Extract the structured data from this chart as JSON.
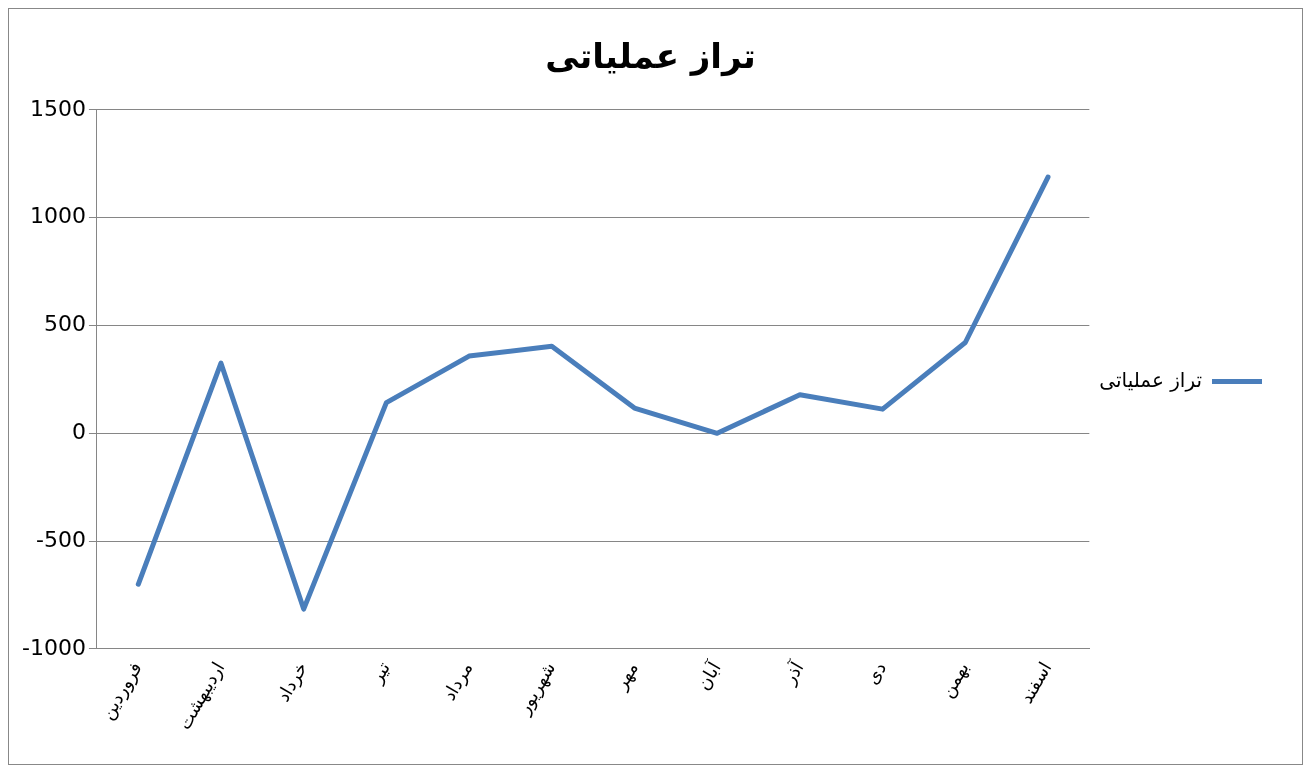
{
  "chart_data": {
    "type": "line",
    "title": "تراز عملیاتی",
    "categories": [
      "فروردین",
      "اردیبهشت",
      "خرداد",
      "تیر",
      "مرداد",
      "شهریور",
      "مهر",
      "آبان",
      "آذر",
      "دی",
      "بهمن",
      "اسفند"
    ],
    "series": [
      {
        "name": "تراز عملیاتی",
        "color": "#4a7ebb",
        "values": [
          -700,
          325,
          -815,
          142,
          358,
          404,
          117,
          0,
          179,
          112,
          421,
          1188
        ]
      }
    ],
    "ylim": [
      -1000,
      1500
    ],
    "yticks": [
      -1000,
      -500,
      0,
      500,
      1000,
      1500
    ],
    "grid": "y",
    "legend": "right",
    "marker": "none",
    "line_style": "solid"
  }
}
